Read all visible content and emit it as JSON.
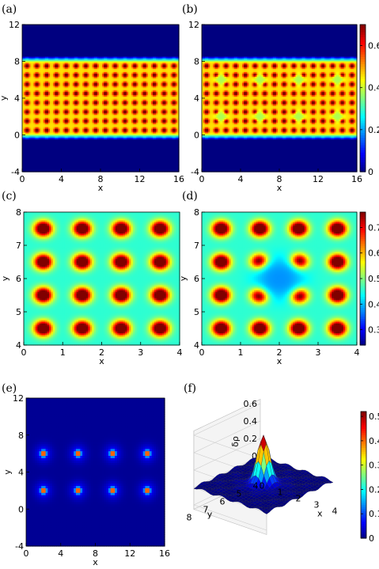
{
  "chart_data": [
    {
      "type": "heatmap",
      "panel_label": "(a)",
      "xlabel": "x",
      "ylabel": "y",
      "xlim": [
        0,
        16
      ],
      "ylim": [
        -4,
        12
      ],
      "x_ticks": [
        "0",
        "4",
        "8",
        "12",
        "16"
      ],
      "y_ticks": [
        "-4",
        "0",
        "4",
        "8",
        "12"
      ],
      "field": "density",
      "band_y": [
        0,
        8
      ],
      "lattice_spacing": 1,
      "peak_value": 0.7,
      "background_value": 0,
      "colormap": "jet",
      "colorbar": false
    },
    {
      "type": "heatmap",
      "panel_label": "(b)",
      "xlabel": "x",
      "ylabel": "",
      "xlim": [
        0,
        16
      ],
      "ylim": [
        -4,
        12
      ],
      "x_ticks": [
        "0",
        "4",
        "8",
        "12",
        "16"
      ],
      "y_ticks": [
        "-4",
        "0",
        "4",
        "8",
        "12"
      ],
      "field": "density",
      "band_y": [
        0,
        8
      ],
      "lattice_spacing": 1,
      "vacancies": [
        [
          2,
          6
        ],
        [
          6,
          6
        ],
        [
          10,
          6
        ],
        [
          14,
          6
        ],
        [
          2,
          2
        ],
        [
          6,
          2
        ],
        [
          10,
          2
        ],
        [
          14,
          2
        ]
      ],
      "colormap": "jet",
      "colorbar": true,
      "colorbar_range": [
        0,
        0.7
      ],
      "colorbar_ticks": [
        "0",
        "0.2",
        "0.4",
        "0.6"
      ]
    },
    {
      "type": "heatmap",
      "panel_label": "(c)",
      "xlabel": "x",
      "ylabel": "y",
      "xlim": [
        0,
        4
      ],
      "ylim": [
        4,
        8
      ],
      "x_ticks": [
        "0",
        "1",
        "2",
        "3",
        "4"
      ],
      "y_ticks": [
        "4",
        "5",
        "6",
        "7",
        "8"
      ],
      "field": "density",
      "lattice_spacing": 1,
      "colormap": "jet",
      "colorbar": false
    },
    {
      "type": "heatmap",
      "panel_label": "(d)",
      "xlabel": "x",
      "ylabel": "y",
      "xlim": [
        0,
        4
      ],
      "ylim": [
        4,
        8
      ],
      "x_ticks": [
        "0",
        "1",
        "2",
        "3",
        "4"
      ],
      "y_ticks": [
        "4",
        "5",
        "6",
        "7",
        "8"
      ],
      "field": "density",
      "lattice_spacing": 1,
      "vacancies": [
        [
          2,
          6
        ]
      ],
      "colormap": "jet",
      "colorbar": true,
      "colorbar_range": [
        0.24,
        0.76
      ],
      "colorbar_ticks": [
        "0.3",
        "0.4",
        "0.5",
        "0.6",
        "0.7"
      ]
    },
    {
      "type": "heatmap",
      "panel_label": "(e)",
      "xlabel": "x",
      "ylabel": "y",
      "xlim": [
        0,
        16
      ],
      "ylim": [
        -4,
        12
      ],
      "x_ticks": [
        "0",
        "4",
        "8",
        "12",
        "16"
      ],
      "y_ticks": [
        "-4",
        "0",
        "4",
        "8",
        "12"
      ],
      "field": "density difference",
      "peaks": [
        [
          2,
          6
        ],
        [
          6,
          6
        ],
        [
          10,
          6
        ],
        [
          14,
          6
        ],
        [
          2,
          2
        ],
        [
          6,
          2
        ],
        [
          10,
          2
        ],
        [
          14,
          2
        ]
      ],
      "colormap": "jet",
      "colorbar": false
    },
    {
      "type": "surface",
      "panel_label": "(f)",
      "zlabel": "δρ",
      "xlabel": "x",
      "ylabel": "y",
      "z_ticks": [
        "-0.2",
        "0",
        "0.2",
        "0.4",
        "0.6"
      ],
      "x_ticks": [
        "0",
        "1",
        "2",
        "3",
        "4"
      ],
      "y_ticks": [
        "4",
        "5",
        "6",
        "7",
        "8"
      ],
      "peak": {
        "x": 2,
        "y": 6,
        "z": 0.52
      },
      "colormap": "jet",
      "colorbar": true,
      "colorbar_range": [
        0,
        0.52
      ],
      "colorbar_ticks": [
        "0",
        "0.1",
        "0.2",
        "0.3",
        "0.4",
        "0.5"
      ]
    }
  ]
}
